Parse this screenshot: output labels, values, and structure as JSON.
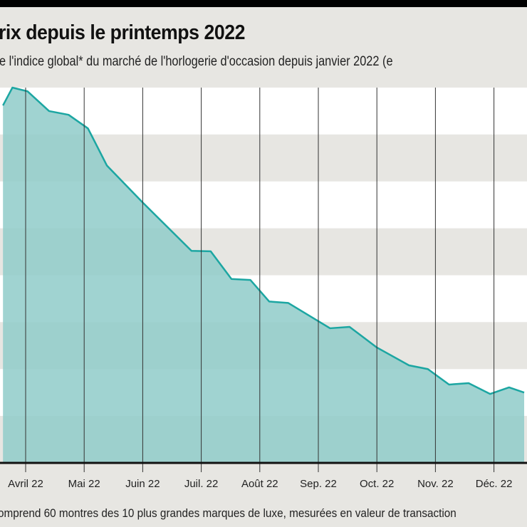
{
  "title": "rix depuis le printemps 2022",
  "subtitle": "e l'indice global* du marché de l'horlogerie d'occasion depuis janvier 2022 (e",
  "footnote": "omprend 60 montres des 10 plus grandes marques de luxe, mesurées en valeur de transaction",
  "colors": {
    "line": "#1ca6a2",
    "fill": "#8fcbc9",
    "band": "#e7e6e2",
    "background": "#ffffff"
  },
  "chart_data": {
    "type": "area",
    "title": "rix depuis le printemps 2022",
    "xlabel": "",
    "ylabel": "",
    "grid": true,
    "y_axis_labels_visible": false,
    "ylim": [
      0,
      8
    ],
    "x_ticks": [
      {
        "date": "2022-04-01",
        "label": "Avril 22"
      },
      {
        "date": "2022-05-01",
        "label": "Mai 22"
      },
      {
        "date": "2022-06-01",
        "label": "Juin 22"
      },
      {
        "date": "2022-07-01",
        "label": "Juil. 22"
      },
      {
        "date": "2022-08-01",
        "label": "Août 22"
      },
      {
        "date": "2022-09-01",
        "label": "Sep. 22"
      },
      {
        "date": "2022-10-01",
        "label": "Oct. 22"
      },
      {
        "date": "2022-11-01",
        "label": "Nov. 22"
      },
      {
        "date": "2022-12-01",
        "label": "Déc. 22"
      }
    ],
    "x": [
      "2022-03-20",
      "2022-03-25",
      "2022-04-02",
      "2022-04-13",
      "2022-04-23",
      "2022-05-03",
      "2022-05-13",
      "2022-06-01",
      "2022-06-26",
      "2022-07-06",
      "2022-07-17",
      "2022-07-27",
      "2022-08-06",
      "2022-08-16",
      "2022-09-07",
      "2022-09-17",
      "2022-10-01",
      "2022-10-18",
      "2022-10-28",
      "2022-11-08",
      "2022-11-18",
      "2022-11-29",
      "2022-12-09",
      "2022-12-17"
    ],
    "values": [
      7.62,
      8.0,
      7.92,
      7.5,
      7.42,
      7.13,
      6.34,
      5.55,
      4.52,
      4.51,
      3.92,
      3.9,
      3.44,
      3.41,
      2.87,
      2.9,
      2.46,
      2.08,
      2.0,
      1.67,
      1.7,
      1.47,
      1.61,
      1.5
    ]
  }
}
